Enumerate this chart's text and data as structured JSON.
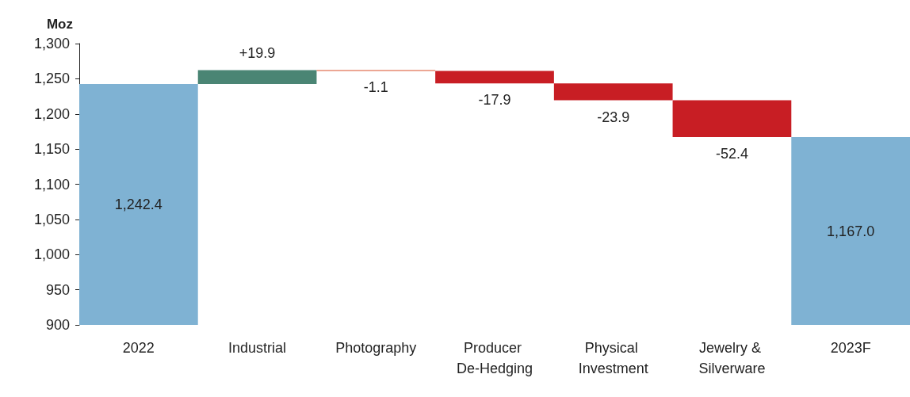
{
  "chart_data": {
    "type": "bar",
    "ylabel": "Moz",
    "categories": [
      "2022",
      "Industrial",
      "Photography",
      "Producer De-Hedging",
      "Physical Investment",
      "Jewelry & Silverware",
      "2023F"
    ],
    "values": [
      1242.4,
      19.9,
      -1.1,
      -17.9,
      -23.9,
      -52.4,
      1167.0
    ],
    "base": [
      null,
      1242.4,
      1262.3,
      1261.2,
      1243.3,
      1219.4,
      null
    ],
    "colors": [
      "#7fb2d3",
      "#4a8574",
      "#d9502a",
      "#c81e24",
      "#c81e24",
      "#c81e24",
      "#7fb2d3"
    ],
    "value_labels": [
      "1,242.4",
      "+19.9",
      "-1.1",
      "-17.9",
      "-23.9",
      "-52.4",
      "1,167.0"
    ],
    "ylim": [
      900,
      1300
    ],
    "yticks": [
      900,
      950,
      {
        "value": 1000,
        "label": "1,000"
      },
      {
        "value": 1050,
        "label": "1,050"
      },
      {
        "value": 1100,
        "label": "1,100"
      },
      {
        "value": 1150,
        "label": "1,150"
      },
      {
        "value": 1200,
        "label": "1,200"
      },
      {
        "value": 1250,
        "label": "1,250"
      },
      {
        "value": 1300,
        "label": "1,300"
      }
    ],
    "grid": false
  }
}
